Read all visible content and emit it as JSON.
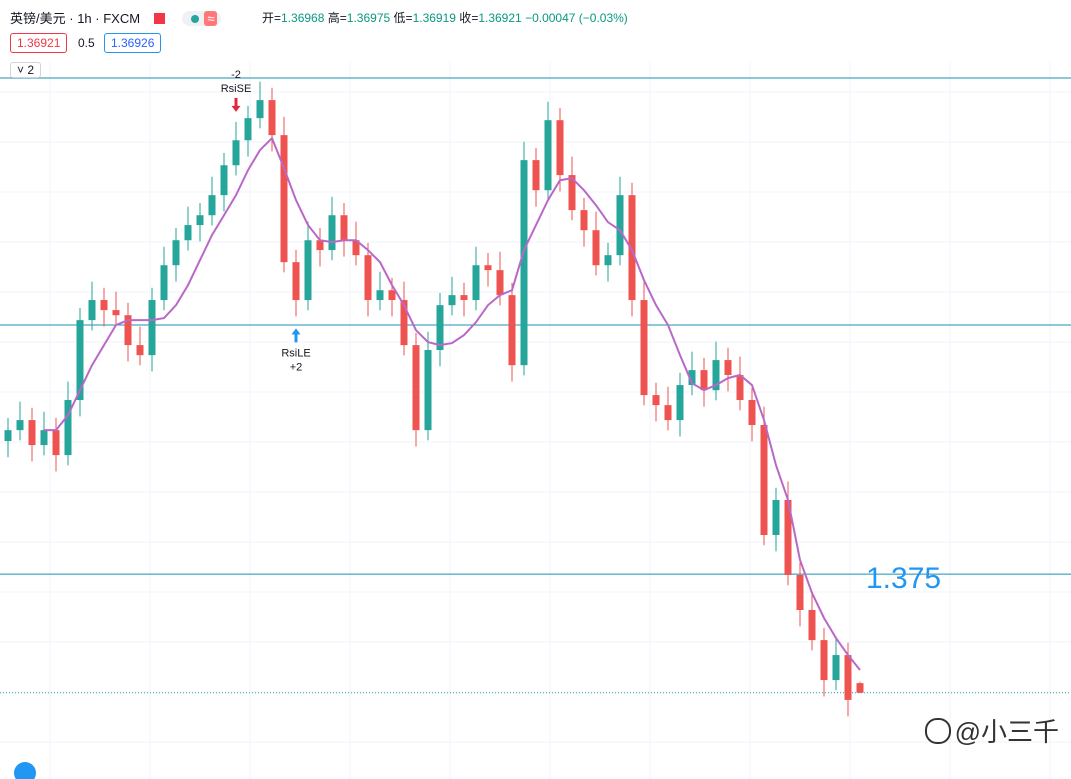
{
  "toolbar": {
    "symbol": "英镑/美元",
    "interval": "1h",
    "source": "FXCM",
    "ohlc": [
      {
        "label": "开",
        "value": "1.36968"
      },
      {
        "label": "高",
        "value": "1.36975"
      },
      {
        "label": "低",
        "value": "1.36919"
      },
      {
        "label": "收",
        "value": "1.36921"
      }
    ],
    "change": "−0.00047 (−0.03%)",
    "bid": "1.36921",
    "spread": "0.5",
    "ask": "1.36926",
    "pane_count": "2"
  },
  "watermark": "@小三千",
  "chart_data": {
    "type": "candlestick",
    "ylim": [
      1.365,
      1.4
    ],
    "grid": true,
    "up_color": "#26a69a",
    "down_color": "#ef5350",
    "open": [
      1.3815,
      1.38203,
      1.38252,
      1.3813,
      1.38203,
      1.38081,
      1.3835,
      1.3874,
      1.38838,
      1.38789,
      1.38764,
      1.38618,
      1.38569,
      1.38838,
      1.39008,
      1.3913,
      1.39204,
      1.39252,
      1.3935,
      1.39496,
      1.39618,
      1.39726,
      1.39814,
      1.39643,
      1.39023,
      1.38838,
      1.3913,
      1.39082,
      1.39252,
      1.3913,
      1.39057,
      1.38838,
      1.38886,
      1.38838,
      1.38618,
      1.38203,
      1.38594,
      1.38813,
      1.38862,
      1.38838,
      1.39008,
      1.38984,
      1.38862,
      1.3852,
      1.39521,
      1.39374,
      1.39716,
      1.39448,
      1.39277,
      1.39179,
      1.39008,
      1.39057,
      1.3935,
      1.38838,
      1.38374,
      1.38325,
      1.38252,
      1.38423,
      1.38496,
      1.38398,
      1.38545,
      1.38472,
      1.3835,
      1.38228,
      1.37691,
      1.37862,
      1.37496,
      1.37325,
      1.37178,
      1.36983,
      1.37105,
      1.36968
    ],
    "high": [
      1.38263,
      1.38342,
      1.38312,
      1.38293,
      1.38263,
      1.3844,
      1.388,
      1.38928,
      1.38898,
      1.38879,
      1.38824,
      1.38708,
      1.38898,
      1.39098,
      1.3919,
      1.39294,
      1.39312,
      1.3944,
      1.39556,
      1.39708,
      1.39786,
      1.39904,
      1.39874,
      1.39733,
      1.39083,
      1.3922,
      1.3919,
      1.39342,
      1.39312,
      1.3922,
      1.39117,
      1.38976,
      1.38946,
      1.38928,
      1.38678,
      1.38684,
      1.38873,
      1.38952,
      1.38922,
      1.39098,
      1.39068,
      1.39074,
      1.38922,
      1.39611,
      1.39581,
      1.39806,
      1.39776,
      1.39538,
      1.39337,
      1.39269,
      1.39117,
      1.3944,
      1.3941,
      1.38928,
      1.38434,
      1.38415,
      1.38483,
      1.38586,
      1.38556,
      1.38635,
      1.38605,
      1.38562,
      1.3841,
      1.38318,
      1.37922,
      1.37952,
      1.37556,
      1.37415,
      1.37238,
      1.37195,
      1.37165,
      1.36975
    ],
    "low": [
      1.3807,
      1.38153,
      1.3805,
      1.3808,
      1.38001,
      1.38031,
      1.3827,
      1.3869,
      1.38709,
      1.38714,
      1.38538,
      1.38519,
      1.38489,
      1.38788,
      1.38928,
      1.3908,
      1.39124,
      1.39202,
      1.3927,
      1.39446,
      1.39538,
      1.39676,
      1.39563,
      1.38973,
      1.38758,
      1.38788,
      1.39002,
      1.39032,
      1.3905,
      1.39007,
      1.38758,
      1.38788,
      1.38758,
      1.38568,
      1.38123,
      1.38153,
      1.38514,
      1.38763,
      1.38758,
      1.38788,
      1.38904,
      1.38812,
      1.3844,
      1.3847,
      1.39294,
      1.39324,
      1.39368,
      1.39227,
      1.39099,
      1.38958,
      1.38928,
      1.39007,
      1.38758,
      1.38324,
      1.38245,
      1.38202,
      1.38172,
      1.38373,
      1.38318,
      1.38348,
      1.38392,
      1.383,
      1.38148,
      1.37641,
      1.37611,
      1.37446,
      1.37245,
      1.37128,
      1.36903,
      1.36933,
      1.36806,
      1.36919
    ],
    "close": [
      1.38203,
      1.38252,
      1.3813,
      1.38203,
      1.38081,
      1.3835,
      1.3874,
      1.38838,
      1.38789,
      1.38764,
      1.38618,
      1.38569,
      1.38838,
      1.39008,
      1.3913,
      1.39204,
      1.39252,
      1.3935,
      1.39496,
      1.39618,
      1.39726,
      1.39814,
      1.39643,
      1.39023,
      1.38838,
      1.3913,
      1.39082,
      1.39252,
      1.3913,
      1.39057,
      1.38838,
      1.38886,
      1.38838,
      1.38618,
      1.38203,
      1.38594,
      1.38813,
      1.38862,
      1.38838,
      1.39008,
      1.38984,
      1.38862,
      1.3852,
      1.39521,
      1.39374,
      1.39716,
      1.39448,
      1.39277,
      1.39179,
      1.39008,
      1.39057,
      1.3935,
      1.38838,
      1.38374,
      1.38325,
      1.38252,
      1.38423,
      1.38496,
      1.38398,
      1.38545,
      1.38472,
      1.3835,
      1.38228,
      1.37691,
      1.37862,
      1.37496,
      1.37325,
      1.37178,
      1.36983,
      1.37105,
      1.36886,
      1.36921
    ],
    "ma": {
      "color": "#ba68c8",
      "values": [
        null,
        null,
        null,
        1.38203,
        1.38203,
        1.38276,
        1.38398,
        1.3852,
        1.38618,
        1.38716,
        1.3874,
        1.3874,
        1.3874,
        1.3875,
        1.38813,
        1.38911,
        1.39033,
        1.39155,
        1.39252,
        1.3935,
        1.39472,
        1.3957,
        1.39628,
        1.39482,
        1.39326,
        1.39204,
        1.3913,
        1.39121,
        1.3913,
        1.3913,
        1.39082,
        1.39023,
        1.38911,
        1.38813,
        1.38691,
        1.38633,
        1.38618,
        1.38628,
        1.38667,
        1.3873,
        1.38813,
        1.38862,
        1.38886,
        1.39082,
        1.39204,
        1.39326,
        1.39423,
        1.39433,
        1.39374,
        1.39301,
        1.39218,
        1.39179,
        1.39082,
        1.38935,
        1.38813,
        1.38716,
        1.38569,
        1.38432,
        1.38398,
        1.38423,
        1.38457,
        1.38472,
        1.38423,
        1.38252,
        1.38032,
        1.37862,
        1.37569,
        1.37408,
        1.37286,
        1.37188,
        1.37105,
        1.37032
      ]
    },
    "levels": [
      1.39922,
      1.38716,
      1.375
    ],
    "level_color": "#1e8fb0",
    "last_price": 1.36921,
    "signals": [
      {
        "name": "RsiSE",
        "amount": "-2",
        "color": "#e0283c"
      },
      {
        "name": "RsiLE",
        "amount": "+2",
        "color": "#2196f3"
      }
    ]
  }
}
